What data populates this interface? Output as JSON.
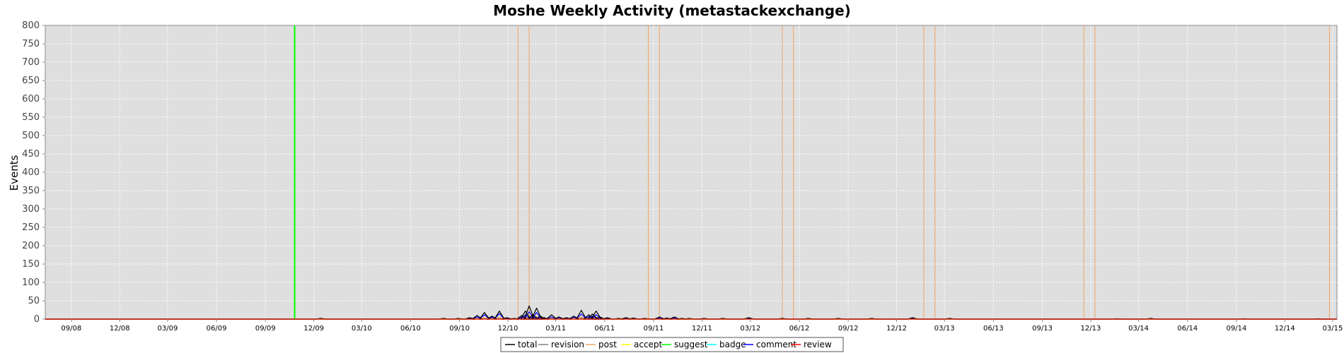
{
  "chart_data": {
    "type": "line",
    "title": "Moshe Weekly Activity (metastackexchange)",
    "xlabel": "",
    "ylabel": "Events",
    "ylim": [
      0,
      800
    ],
    "yticks": [
      0,
      50,
      100,
      150,
      200,
      250,
      300,
      350,
      400,
      450,
      500,
      550,
      600,
      650,
      700,
      750,
      800
    ],
    "xlim": [
      "2008-07-14",
      "2015-03-09"
    ],
    "xticks": [
      {
        "date": "2008-09-01",
        "label": "09/08"
      },
      {
        "date": "2008-12-01",
        "label": "12/08"
      },
      {
        "date": "2009-03-01",
        "label": "03/09"
      },
      {
        "date": "2009-06-01",
        "label": "06/09"
      },
      {
        "date": "2009-09-01",
        "label": "09/09"
      },
      {
        "date": "2009-12-01",
        "label": "12/09"
      },
      {
        "date": "2010-03-01",
        "label": "03/10"
      },
      {
        "date": "2010-06-01",
        "label": "06/10"
      },
      {
        "date": "2010-09-01",
        "label": "09/10"
      },
      {
        "date": "2010-12-01",
        "label": "12/10"
      },
      {
        "date": "2011-03-01",
        "label": "03/11"
      },
      {
        "date": "2011-06-01",
        "label": "06/11"
      },
      {
        "date": "2011-09-01",
        "label": "09/11"
      },
      {
        "date": "2011-12-01",
        "label": "12/11"
      },
      {
        "date": "2012-03-01",
        "label": "03/12"
      },
      {
        "date": "2012-06-01",
        "label": "06/12"
      },
      {
        "date": "2012-09-01",
        "label": "09/12"
      },
      {
        "date": "2012-12-01",
        "label": "12/12"
      },
      {
        "date": "2013-03-01",
        "label": "03/13"
      },
      {
        "date": "2013-06-01",
        "label": "06/13"
      },
      {
        "date": "2013-09-01",
        "label": "09/13"
      },
      {
        "date": "2013-12-01",
        "label": "12/13"
      },
      {
        "date": "2014-03-01",
        "label": "03/14"
      },
      {
        "date": "2014-06-01",
        "label": "06/14"
      },
      {
        "date": "2014-09-01",
        "label": "09/14"
      },
      {
        "date": "2014-12-01",
        "label": "12/14"
      },
      {
        "date": "2015-03-01",
        "label": "03/15"
      }
    ],
    "grid": true,
    "legend_position": "bottom",
    "markers": [
      {
        "series": "suggest",
        "date": "2009-10-26"
      },
      {
        "series": "post",
        "date": "2010-12-20"
      },
      {
        "series": "post",
        "date": "2011-01-10"
      },
      {
        "series": "post",
        "date": "2011-08-22"
      },
      {
        "series": "post",
        "date": "2011-09-12"
      },
      {
        "series": "post",
        "date": "2012-04-30"
      },
      {
        "series": "post",
        "date": "2012-05-21"
      },
      {
        "series": "post",
        "date": "2013-01-21"
      },
      {
        "series": "post",
        "date": "2013-02-11"
      },
      {
        "series": "post",
        "date": "2013-11-18"
      },
      {
        "series": "post",
        "date": "2013-12-09"
      },
      {
        "series": "post",
        "date": "2015-02-23"
      }
    ],
    "x": [
      "2009-12-14",
      "2010-08-02",
      "2010-08-30",
      "2010-09-20",
      "2010-10-04",
      "2010-10-18",
      "2010-11-01",
      "2010-11-15",
      "2010-11-29",
      "2010-12-13",
      "2010-12-27",
      "2011-01-03",
      "2011-01-10",
      "2011-01-17",
      "2011-01-24",
      "2011-01-31",
      "2011-02-07",
      "2011-02-21",
      "2011-03-07",
      "2011-03-21",
      "2011-04-04",
      "2011-04-18",
      "2011-05-02",
      "2011-05-09",
      "2011-05-16",
      "2011-05-23",
      "2011-06-06",
      "2011-06-27",
      "2011-07-11",
      "2011-07-25",
      "2011-08-15",
      "2011-09-12",
      "2011-09-26",
      "2011-10-10",
      "2011-10-24",
      "2011-11-07",
      "2011-12-05",
      "2012-01-09",
      "2012-02-27",
      "2012-04-30",
      "2012-06-18",
      "2012-08-13",
      "2012-10-15",
      "2012-12-31",
      "2013-03-11",
      "2014-01-20",
      "2014-03-24",
      "2014-09-15",
      "2015-02-02"
    ],
    "series": [
      {
        "name": "total",
        "color": "#000000",
        "values": [
          2,
          2,
          2,
          4,
          10,
          18,
          8,
          22,
          4,
          2,
          10,
          22,
          36,
          12,
          30,
          8,
          4,
          12,
          6,
          4,
          8,
          24,
          12,
          14,
          22,
          6,
          4,
          2,
          4,
          3,
          2,
          6,
          3,
          6,
          2,
          2,
          2,
          2,
          4,
          2,
          2,
          2,
          2,
          4,
          2,
          1,
          2,
          1,
          1
        ]
      },
      {
        "name": "revision",
        "color": "#808080",
        "values": [
          1,
          0,
          0,
          0,
          2,
          2,
          1,
          2,
          1,
          0,
          1,
          3,
          4,
          2,
          3,
          1,
          1,
          2,
          1,
          0,
          1,
          3,
          2,
          2,
          3,
          1,
          0,
          0,
          1,
          0,
          0,
          1,
          0,
          1,
          0,
          0,
          0,
          0,
          1,
          0,
          0,
          0,
          0,
          1,
          0,
          0,
          0,
          0,
          0
        ]
      },
      {
        "name": "post",
        "color": "#f4a460",
        "values": [
          0,
          0,
          0,
          1,
          2,
          4,
          2,
          5,
          1,
          1,
          3,
          6,
          10,
          4,
          8,
          2,
          1,
          3,
          1,
          1,
          2,
          6,
          3,
          4,
          6,
          2,
          1,
          0,
          1,
          1,
          1,
          2,
          1,
          1,
          0,
          0,
          1,
          0,
          1,
          1,
          0,
          0,
          0,
          1,
          1,
          0,
          1,
          0,
          1
        ]
      },
      {
        "name": "accept",
        "color": "#ffff00",
        "values": [
          0,
          0,
          0,
          0,
          0,
          1,
          0,
          1,
          0,
          0,
          0,
          1,
          2,
          1,
          1,
          0,
          0,
          1,
          0,
          0,
          0,
          1,
          1,
          1,
          1,
          0,
          0,
          0,
          0,
          0,
          0,
          0,
          0,
          0,
          0,
          0,
          0,
          0,
          0,
          0,
          0,
          0,
          0,
          0,
          0,
          0,
          0,
          0,
          0
        ]
      },
      {
        "name": "suggest",
        "color": "#00ff00",
        "values": [
          0,
          0,
          0,
          0,
          0,
          0,
          0,
          0,
          0,
          0,
          0,
          0,
          0,
          0,
          0,
          0,
          0,
          0,
          0,
          0,
          0,
          0,
          0,
          0,
          0,
          0,
          0,
          0,
          0,
          0,
          0,
          0,
          0,
          0,
          0,
          0,
          0,
          0,
          0,
          0,
          0,
          0,
          0,
          0,
          0,
          0,
          0,
          0,
          0
        ]
      },
      {
        "name": "badge",
        "color": "#00ffff",
        "values": [
          0,
          1,
          1,
          1,
          1,
          1,
          1,
          1,
          1,
          0,
          1,
          1,
          2,
          1,
          2,
          1,
          1,
          1,
          1,
          1,
          1,
          1,
          1,
          1,
          1,
          1,
          1,
          1,
          1,
          1,
          1,
          1,
          1,
          1,
          1,
          1,
          0,
          1,
          1,
          0,
          1,
          1,
          1,
          1,
          0,
          1,
          0,
          1,
          0
        ]
      },
      {
        "name": "comment",
        "color": "#0000ff",
        "values": [
          1,
          1,
          1,
          2,
          6,
          12,
          5,
          15,
          2,
          1,
          6,
          12,
          20,
          6,
          18,
          5,
          2,
          6,
          4,
          2,
          5,
          14,
          7,
          8,
          12,
          3,
          2,
          1,
          2,
          1,
          1,
          3,
          1,
          3,
          1,
          1,
          1,
          1,
          2,
          1,
          1,
          1,
          1,
          2,
          1,
          0,
          1,
          0,
          0
        ]
      },
      {
        "name": "review",
        "color": "#ff0000",
        "values": [
          0,
          0,
          0,
          0,
          0,
          0,
          0,
          0,
          0,
          0,
          0,
          0,
          0,
          0,
          0,
          0,
          0,
          0,
          0,
          0,
          0,
          0,
          0,
          0,
          0,
          0,
          0,
          0,
          0,
          0,
          0,
          0,
          0,
          0,
          0,
          0,
          0,
          0,
          0,
          0,
          0,
          0,
          0,
          0,
          0,
          0,
          0,
          0,
          0
        ]
      }
    ]
  }
}
